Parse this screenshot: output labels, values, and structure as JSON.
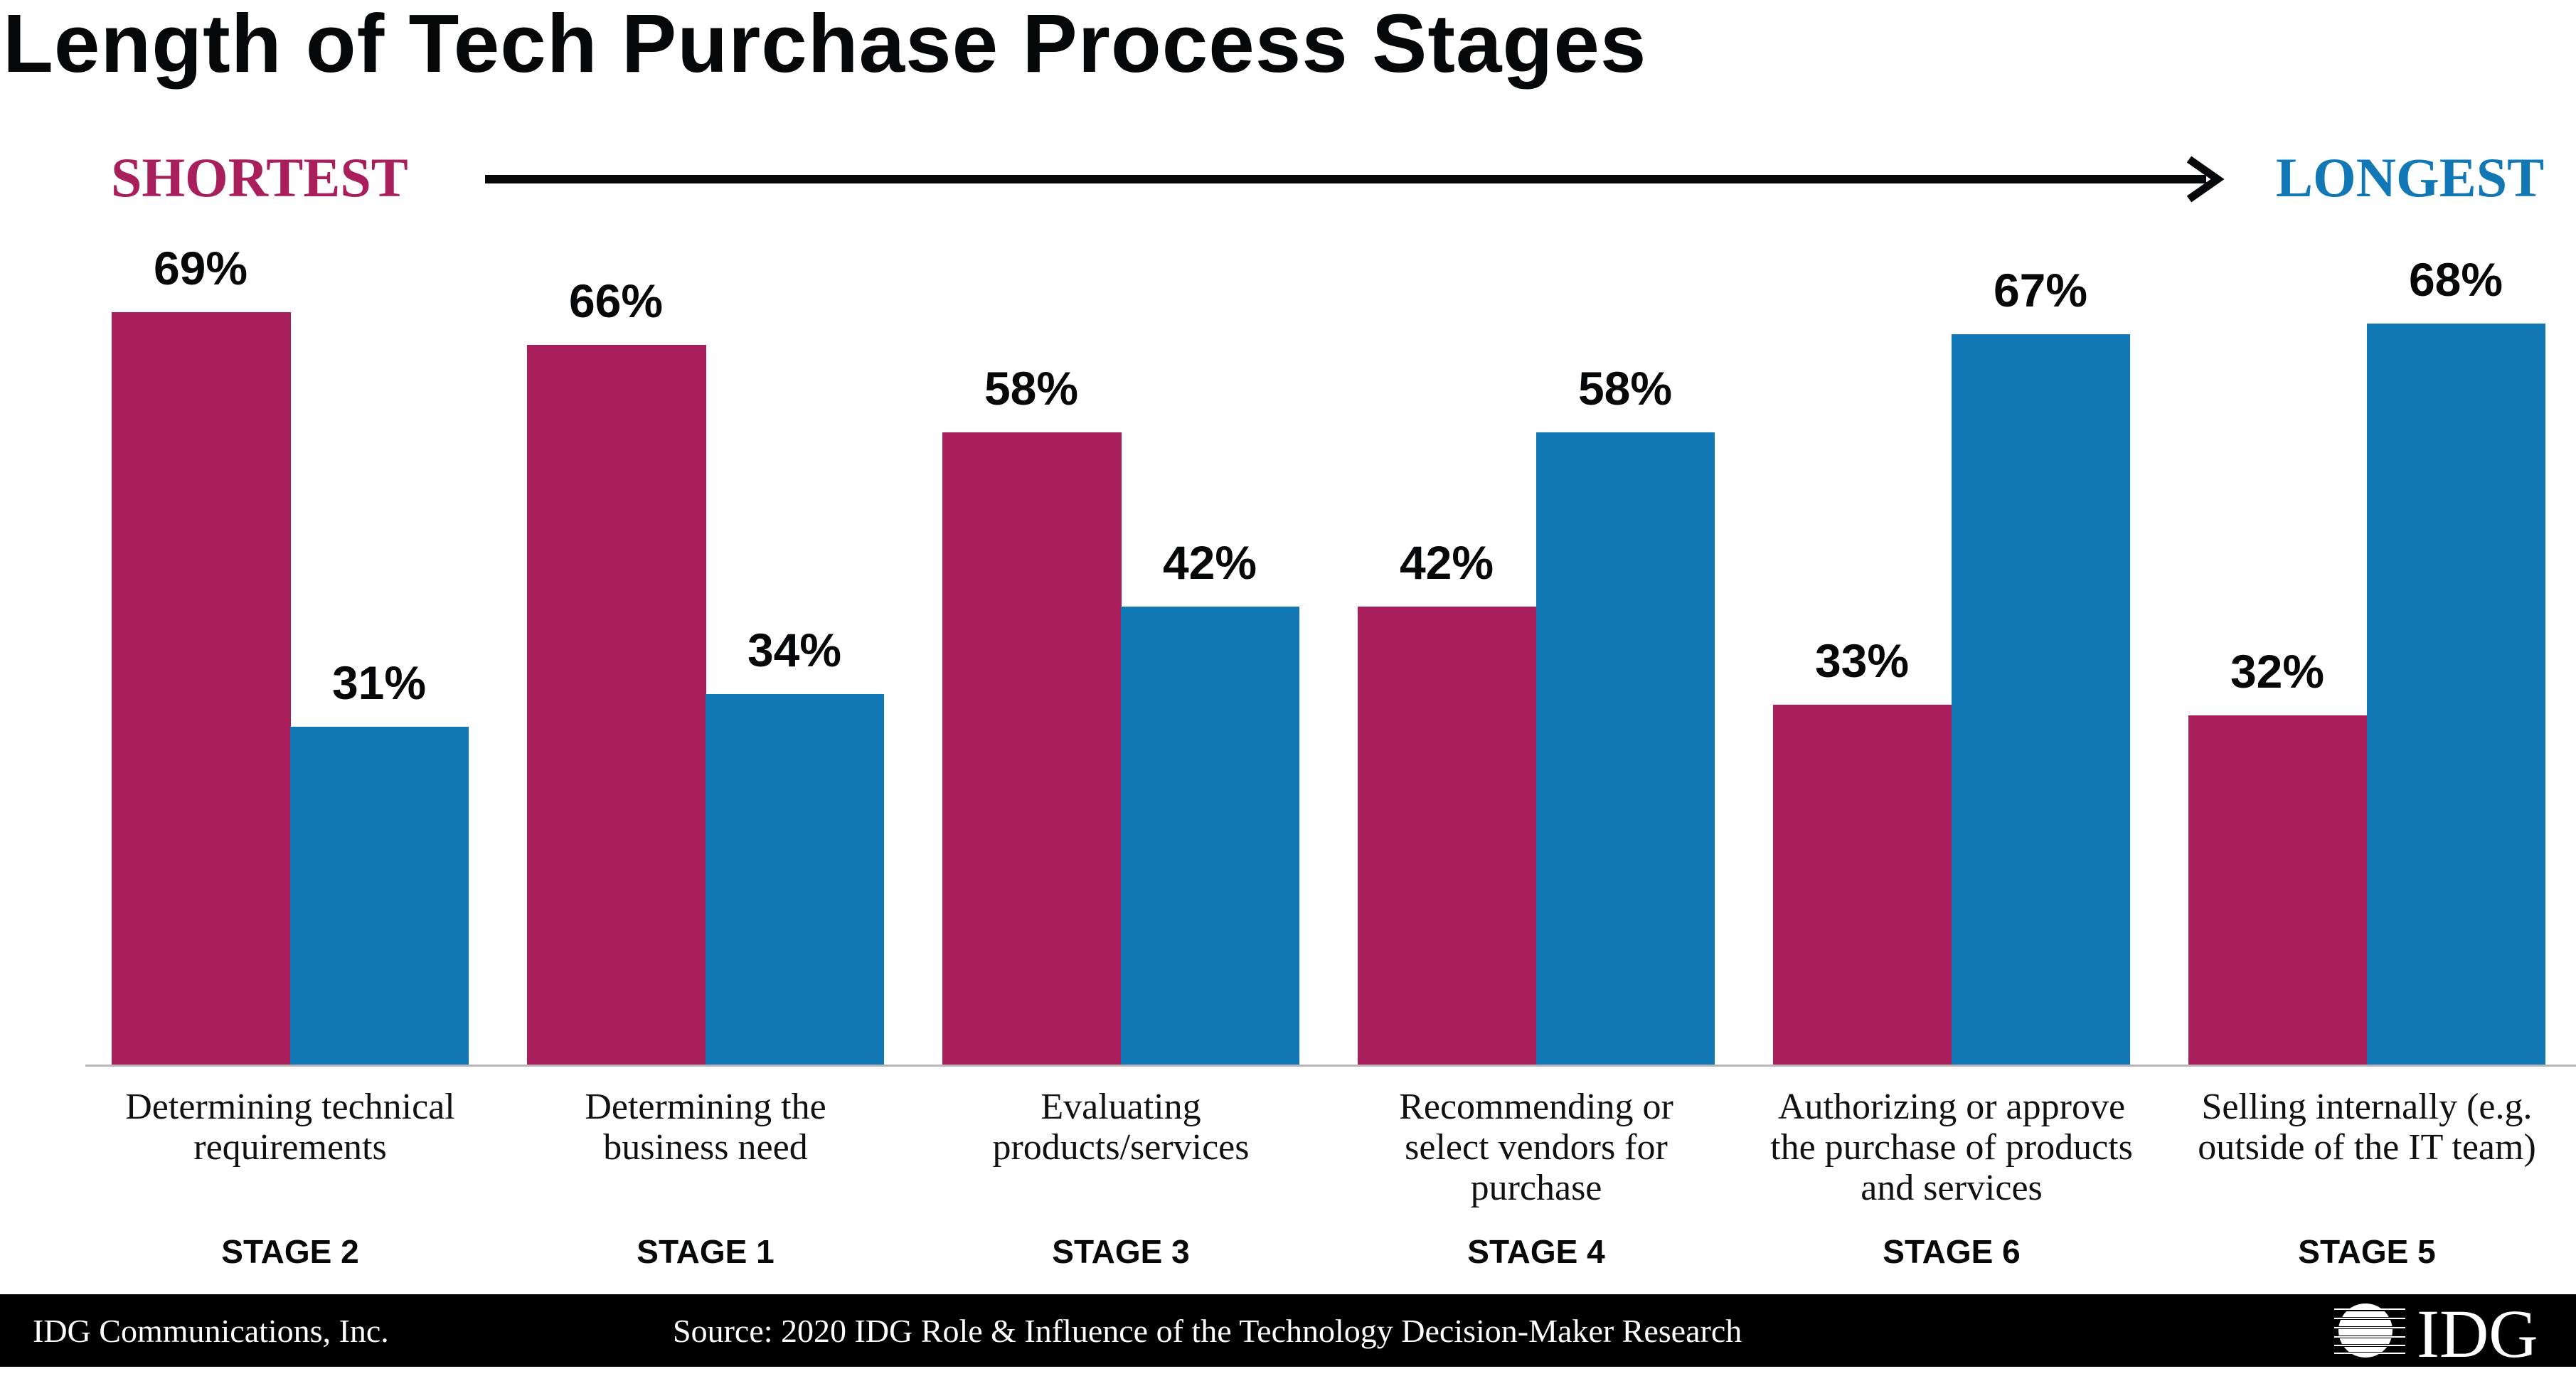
{
  "chart_data": {
    "type": "bar",
    "title": "Length of Tech Purchase Process Stages",
    "scale_labels": {
      "left": "SHORTEST",
      "right": "LONGEST"
    },
    "categories": [
      {
        "label": "Determining technical requirements",
        "lines": [
          "Determining technical",
          "requirements"
        ],
        "stage": "STAGE 2"
      },
      {
        "label": "Determining the business need",
        "lines": [
          "Determining the",
          "business need"
        ],
        "stage": "STAGE 1"
      },
      {
        "label": "Evaluating products/services",
        "lines": [
          "Evaluating",
          "products/services"
        ],
        "stage": "STAGE 3"
      },
      {
        "label": "Recommending or select vendors for purchase",
        "lines": [
          "Recommending or",
          "select vendors for",
          "purchase"
        ],
        "stage": "STAGE 4"
      },
      {
        "label": "Authorizing or approve the purchase of products and services",
        "lines": [
          "Authorizing or approve",
          "the purchase of products",
          "and services"
        ],
        "stage": "STAGE 6"
      },
      {
        "label": "Selling internally (e.g. outside of the IT team)",
        "lines": [
          "Selling internally (e.g.",
          "outside of the IT team)"
        ],
        "stage": "STAGE 5"
      }
    ],
    "series": [
      {
        "name": "Shortest",
        "color": "#A81F5C",
        "values": [
          69,
          66,
          58,
          42,
          33,
          32
        ],
        "labels": [
          "69%",
          "66%",
          "58%",
          "42%",
          "33%",
          "32%"
        ]
      },
      {
        "name": "Longest",
        "color": "#1177B5",
        "values": [
          31,
          34,
          42,
          58,
          67,
          68
        ],
        "labels": [
          "31%",
          "34%",
          "42%",
          "58%",
          "67%",
          "68%"
        ]
      }
    ],
    "ylim": [
      0,
      100
    ],
    "grid": false,
    "legend": "none",
    "xlabel": "",
    "ylabel": ""
  },
  "footer": {
    "company": "IDG Communications, Inc.",
    "source": "Source: 2020 IDG Role & Influence of the Technology Decision-Maker Research",
    "logo_text": "IDG"
  }
}
